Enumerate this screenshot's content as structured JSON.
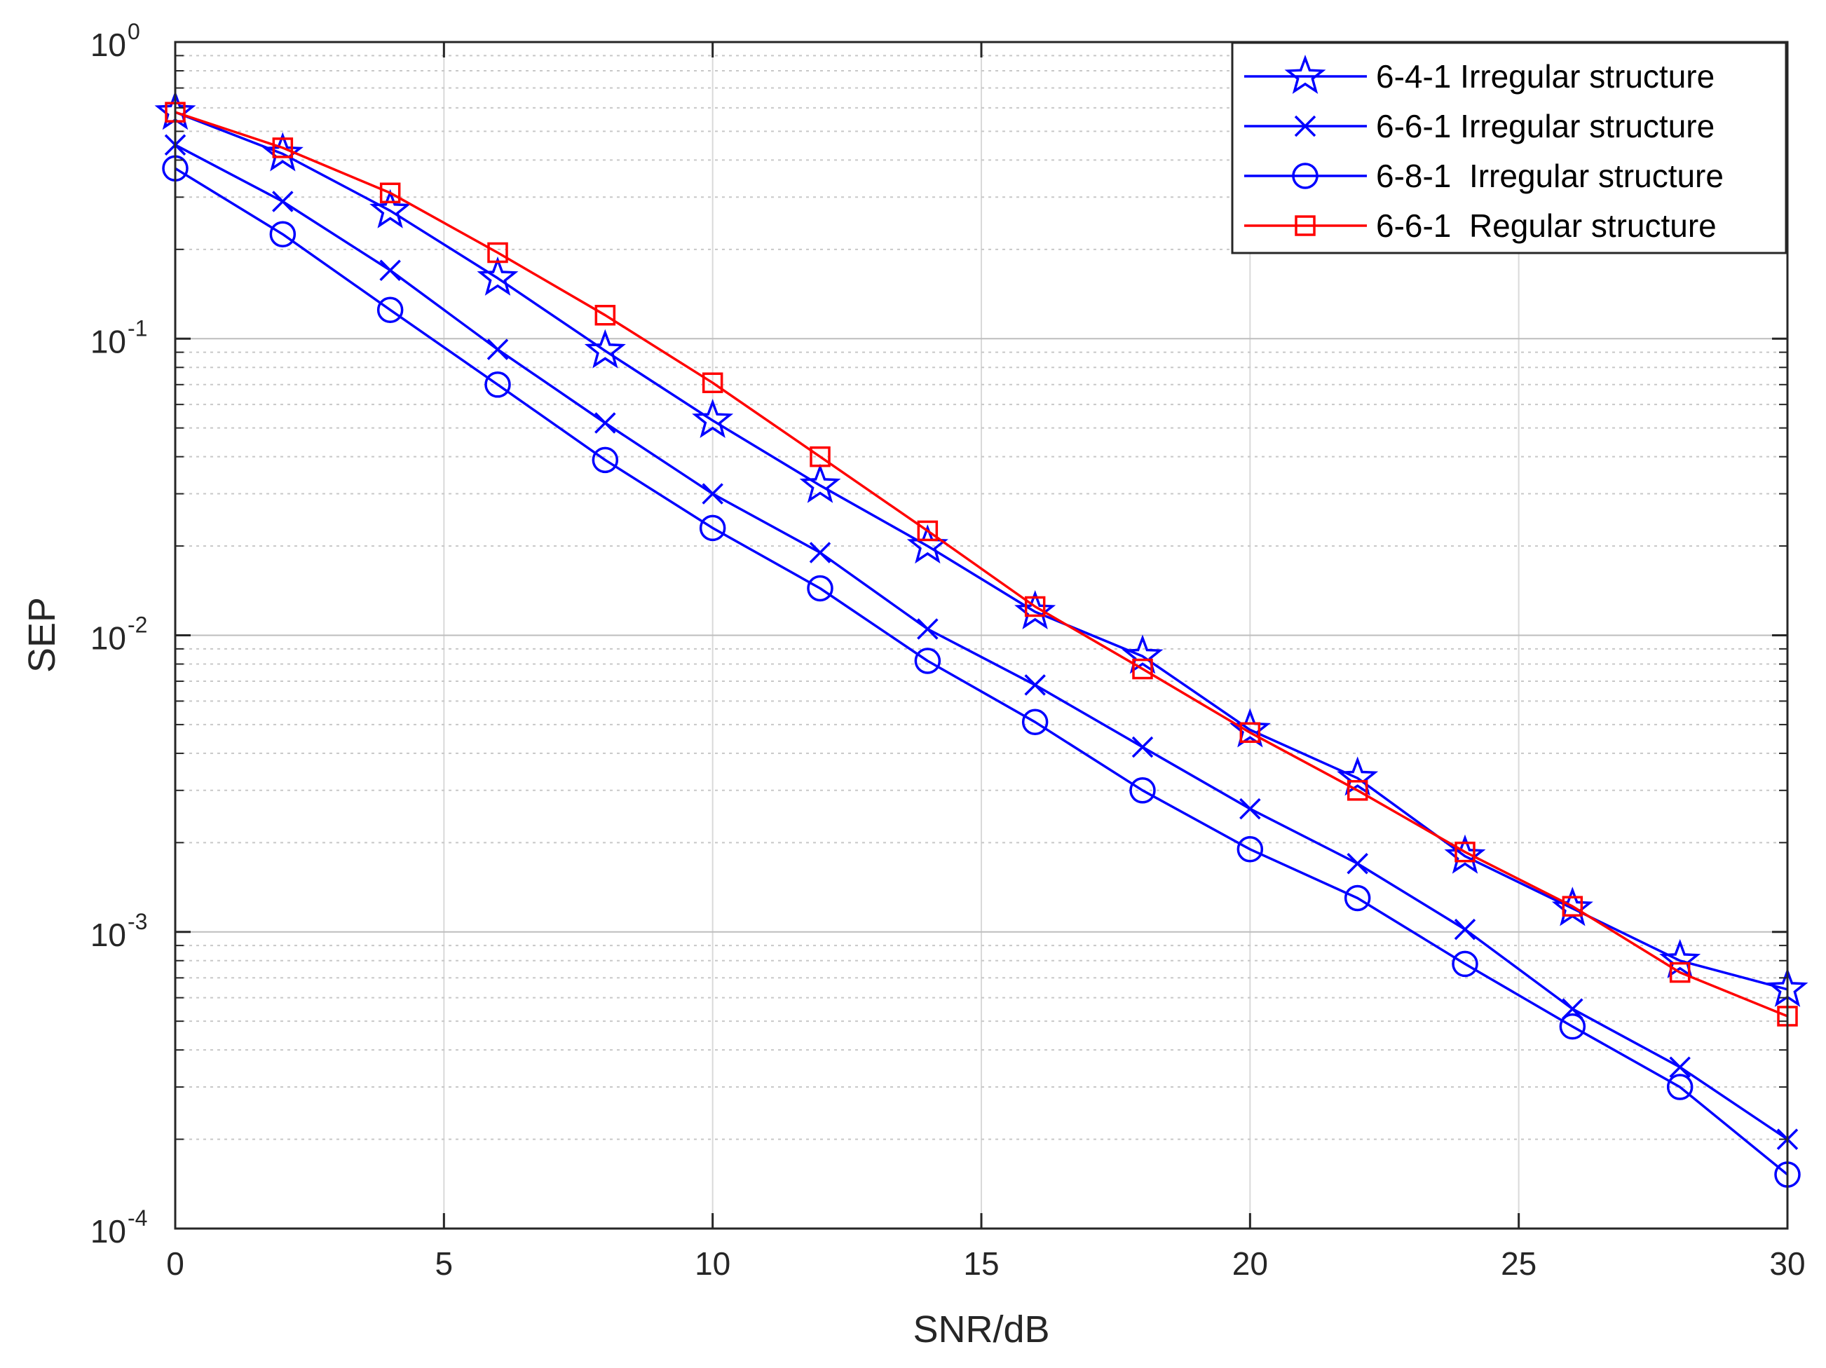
{
  "chart_data": {
    "type": "line",
    "xlabel": "SNR/dB",
    "ylabel": "SEP",
    "xlim": [
      0,
      30
    ],
    "ylim": [
      0.0001,
      1
    ],
    "yscale": "log",
    "grid": true,
    "legend_position": "top-right",
    "xticks": [
      0,
      5,
      10,
      15,
      20,
      25,
      30
    ],
    "yticks": [
      {
        "value": 1,
        "base": "10",
        "exp": "0"
      },
      {
        "value": 0.1,
        "base": "10",
        "exp": "-1"
      },
      {
        "value": 0.01,
        "base": "10",
        "exp": "-2"
      },
      {
        "value": 0.001,
        "base": "10",
        "exp": "-3"
      },
      {
        "value": 0.0001,
        "base": "10",
        "exp": "-4"
      }
    ],
    "x": [
      0,
      2,
      4,
      6,
      8,
      10,
      12,
      14,
      16,
      18,
      20,
      22,
      24,
      26,
      28,
      30
    ],
    "series": [
      {
        "name": "6-4-1 Irregular structure",
        "color": "#0000ff",
        "marker": "star",
        "values": [
          0.58,
          0.42,
          0.27,
          0.16,
          0.091,
          0.053,
          0.032,
          0.02,
          0.012,
          0.0085,
          0.0048,
          0.0033,
          0.0018,
          0.0012,
          0.0008,
          0.00064
        ]
      },
      {
        "name": "6-6-1 Irregular structure",
        "color": "#0000ff",
        "marker": "x",
        "values": [
          0.45,
          0.29,
          0.17,
          0.092,
          0.052,
          0.03,
          0.019,
          0.0105,
          0.0068,
          0.0042,
          0.0026,
          0.0017,
          0.00102,
          0.00055,
          0.00035,
          0.0002
        ]
      },
      {
        "name": "6-8-1  Irregular structure",
        "color": "#0000ff",
        "marker": "circle",
        "values": [
          0.375,
          0.225,
          0.125,
          0.07,
          0.039,
          0.023,
          0.0144,
          0.0082,
          0.0051,
          0.003,
          0.0019,
          0.0013,
          0.00078,
          0.00048,
          0.0003,
          0.000152
        ]
      },
      {
        "name": "6-6-1  Regular structure",
        "color": "#ff0000",
        "marker": "square",
        "values": [
          0.58,
          0.44,
          0.31,
          0.195,
          0.12,
          0.071,
          0.04,
          0.0225,
          0.0125,
          0.0077,
          0.0047,
          0.003,
          0.00186,
          0.00122,
          0.00073,
          0.00052
        ]
      }
    ]
  }
}
